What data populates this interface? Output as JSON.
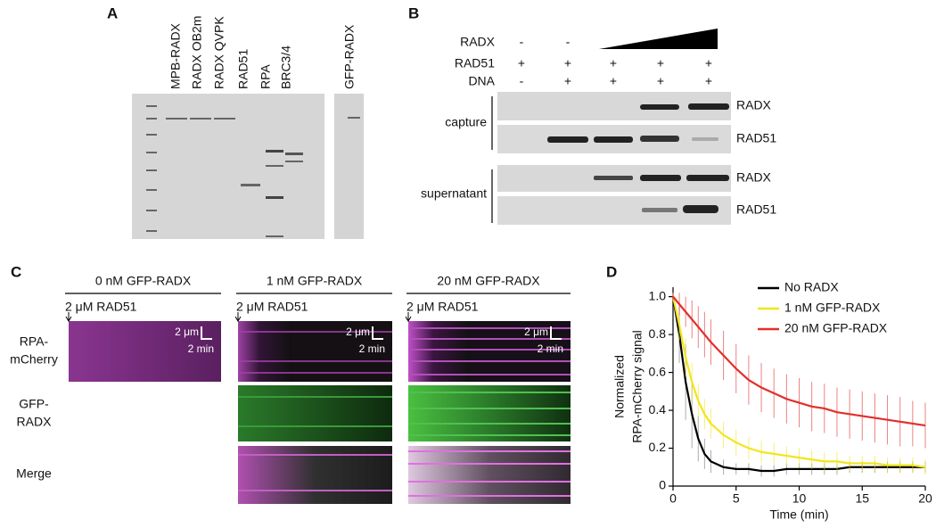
{
  "panel_labels": [
    "A",
    "B",
    "C",
    "D"
  ],
  "panel_a": {
    "lanes": [
      "MPB-RADX",
      "RADX OB2m",
      "RADX QVPK",
      "RAD51",
      "RPA",
      "BRC3/4",
      "GFP-RADX"
    ]
  },
  "panel_b": {
    "conditions": [
      {
        "name": "RADX",
        "signs": [
          "-",
          "-"
        ]
      },
      {
        "name": "RAD51",
        "signs": [
          "+",
          "+",
          "+",
          "+",
          "+"
        ]
      },
      {
        "name": "DNA",
        "signs": [
          "-",
          "+",
          "+",
          "+",
          "+"
        ]
      }
    ],
    "groups": [
      {
        "name": "capture",
        "bands": [
          "RADX",
          "RAD51"
        ]
      },
      {
        "name": "supernatant",
        "bands": [
          "RADX",
          "RAD51"
        ]
      }
    ]
  },
  "panel_c": {
    "columns": [
      "0 nM GFP-RADX",
      "1 nM GFP-RADX",
      "20 nM GFP-RADX"
    ],
    "treatment": "2 μM RAD51",
    "rows": [
      [
        "RPA-",
        "mCherry"
      ],
      [
        "GFP-",
        "RADX"
      ],
      [
        "Merge"
      ]
    ],
    "scale_length": "2 μm",
    "scale_time": "2 min"
  },
  "chart_data": {
    "type": "line",
    "xlabel": "Time (min)",
    "ylabel": [
      "Normalized",
      "RPA-mCherry signal"
    ],
    "x": [
      0,
      0.5,
      1,
      1.5,
      2,
      2.5,
      3,
      4,
      5,
      6,
      7,
      8,
      9,
      10,
      11,
      12,
      13,
      14,
      15,
      16,
      17,
      18,
      19,
      20
    ],
    "series": [
      {
        "name": "No RADX",
        "color": "#000000",
        "values": [
          1.0,
          0.8,
          0.55,
          0.38,
          0.25,
          0.17,
          0.13,
          0.1,
          0.09,
          0.09,
          0.08,
          0.08,
          0.09,
          0.09,
          0.09,
          0.09,
          0.09,
          0.1,
          0.1,
          0.1,
          0.1,
          0.1,
          0.1,
          0.1
        ],
        "errors": [
          0.02,
          0.15,
          0.2,
          0.18,
          0.12,
          0.08,
          0.06,
          0.04,
          0.03,
          0.03,
          0.03,
          0.03,
          0.03,
          0.03,
          0.03,
          0.03,
          0.03,
          0.03,
          0.03,
          0.03,
          0.03,
          0.03,
          0.03,
          0.03
        ]
      },
      {
        "name": "1 nM GFP-RADX",
        "color": "#f2e51d",
        "values": [
          1.0,
          0.85,
          0.68,
          0.55,
          0.45,
          0.38,
          0.33,
          0.27,
          0.23,
          0.2,
          0.18,
          0.17,
          0.16,
          0.15,
          0.14,
          0.13,
          0.13,
          0.12,
          0.12,
          0.12,
          0.11,
          0.11,
          0.11,
          0.1
        ],
        "errors": [
          0.02,
          0.08,
          0.1,
          0.1,
          0.09,
          0.08,
          0.08,
          0.07,
          0.07,
          0.06,
          0.06,
          0.06,
          0.05,
          0.05,
          0.05,
          0.05,
          0.05,
          0.04,
          0.04,
          0.04,
          0.04,
          0.04,
          0.04,
          0.04
        ]
      },
      {
        "name": "20 nM GFP-RADX",
        "color": "#e0302c",
        "values": [
          1.0,
          0.96,
          0.92,
          0.88,
          0.84,
          0.8,
          0.76,
          0.69,
          0.62,
          0.56,
          0.52,
          0.49,
          0.46,
          0.44,
          0.42,
          0.41,
          0.39,
          0.38,
          0.37,
          0.36,
          0.35,
          0.34,
          0.33,
          0.32
        ],
        "errors": [
          0.02,
          0.06,
          0.08,
          0.1,
          0.11,
          0.12,
          0.12,
          0.13,
          0.13,
          0.13,
          0.13,
          0.13,
          0.13,
          0.13,
          0.13,
          0.13,
          0.13,
          0.13,
          0.13,
          0.13,
          0.13,
          0.13,
          0.12,
          0.12
        ]
      }
    ],
    "xlim": [
      0,
      20
    ],
    "ylim": [
      0,
      1.05
    ],
    "xticks": [
      0,
      5,
      10,
      15,
      20
    ],
    "yticks": [
      0,
      0.2,
      0.4,
      0.6,
      0.8,
      {
        "value": 1,
        "label": "1.0"
      }
    ],
    "legend": "upper right"
  }
}
